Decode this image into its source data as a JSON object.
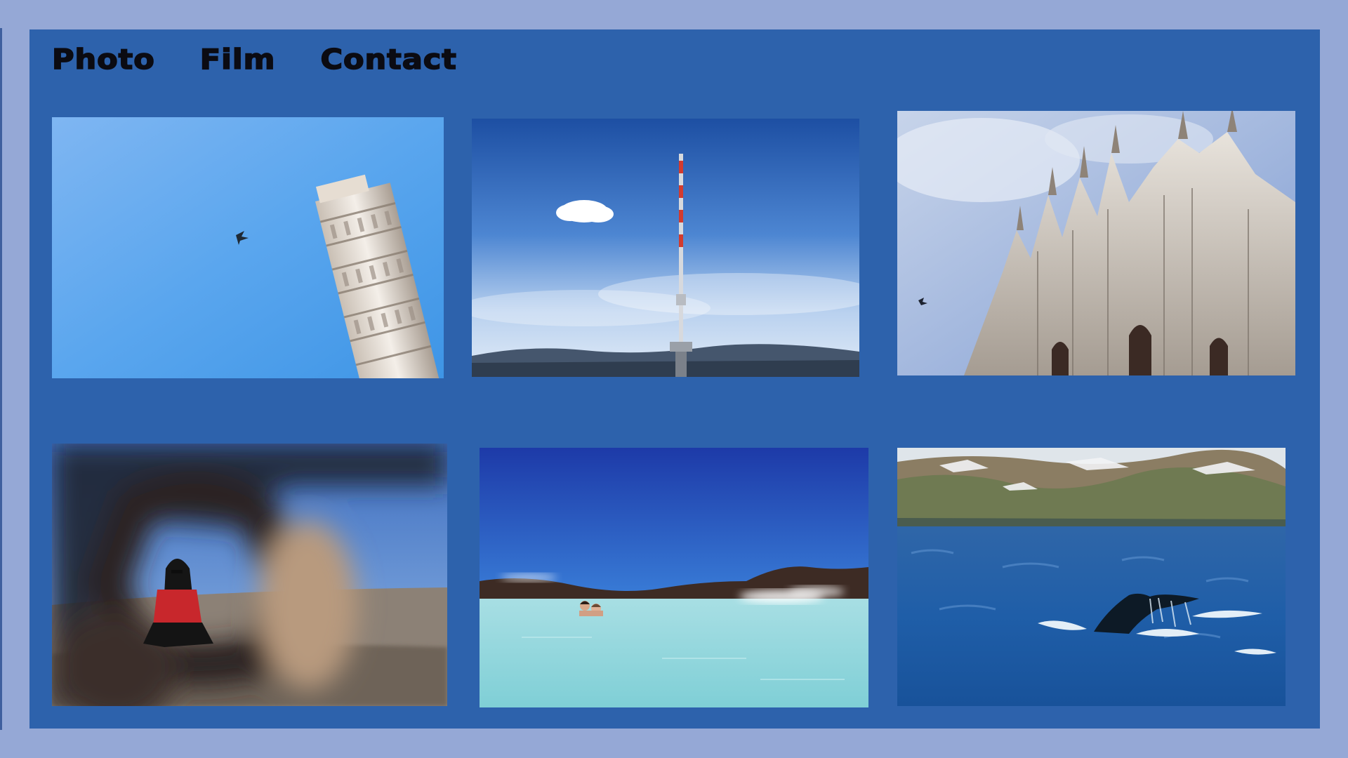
{
  "nav": {
    "items": [
      {
        "label": "Photo"
      },
      {
        "label": "Film"
      },
      {
        "label": "Contact"
      }
    ]
  },
  "colors": {
    "page_background": "#95a8d6",
    "panel_background": "#2d62ac",
    "nav_text": "#0b0b12"
  },
  "gallery": {
    "photos": [
      {
        "subject": "leaning-tower"
      },
      {
        "subject": "tv-tower"
      },
      {
        "subject": "gothic-cathedral"
      },
      {
        "subject": "blurred-portrait"
      },
      {
        "subject": "blue-lagoon"
      },
      {
        "subject": "whale-tail"
      }
    ]
  }
}
